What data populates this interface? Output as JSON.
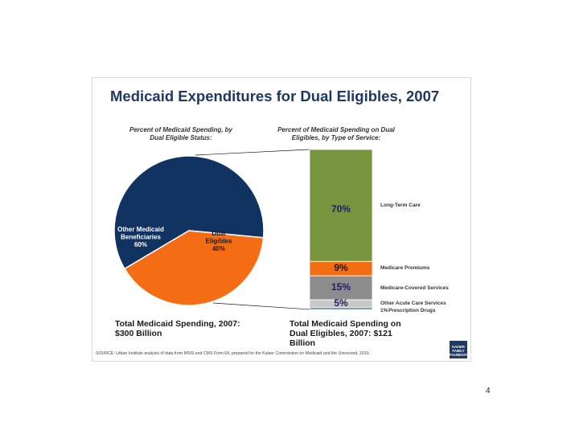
{
  "chart_data": [
    {
      "type": "pie",
      "subtitle": "Percent of Medicaid Spending, by Dual Eligible Status:",
      "slices": [
        {
          "label_lines": [
            "Other Medicaid",
            "Beneficiaries"
          ],
          "value": 60,
          "value_label": "60%",
          "color": "#103362",
          "text_color": "#ffffff"
        },
        {
          "label_lines": [
            "Dual",
            "Eligibles"
          ],
          "value": 40,
          "value_label": "40%",
          "color": "#f46d14",
          "text_color": "#1a1a1a"
        }
      ],
      "footer": "Total Medicaid Spending, 2007: $300 Billion"
    },
    {
      "type": "bar",
      "stacked": true,
      "subtitle": "Percent of Medicaid Spending on Dual Eligibles, by Type of Service:",
      "segments": [
        {
          "label": "Long-Term Care",
          "value": 70,
          "value_label": "70%",
          "color": "#77953e"
        },
        {
          "label": "Medicare Premiums",
          "value": 9,
          "value_label": "9%",
          "color": "#f46d14"
        },
        {
          "label": "Medicare-Covered Services",
          "value": 15,
          "value_label": "15%",
          "color": "#8c8c8c"
        },
        {
          "label": "Other Acute Care Services",
          "value": 5,
          "value_label": "5%",
          "color": "#c8c8c8"
        },
        {
          "label": "Prescription Drugs",
          "value": 1,
          "value_label": "1%",
          "color": "#1a5f9e"
        }
      ],
      "footer": "Total Medicaid Spending on Dual Eligibles, 2007: $121 Billion"
    }
  ],
  "title": "Medicaid Expenditures for Dual Eligibles, 2007",
  "source": "SOURCE: Urban Institute analysis of data from MSIS and CMS Form 64, prepared for the Kaiser Commission on Medicaid and the Uninsured, 2010.",
  "logo_lines": [
    "KAISER",
    "FAMILY",
    "FOUNDATION"
  ],
  "page_number": "4",
  "colors": {
    "title": "#1f3864",
    "connector": "#1a1a1a"
  }
}
